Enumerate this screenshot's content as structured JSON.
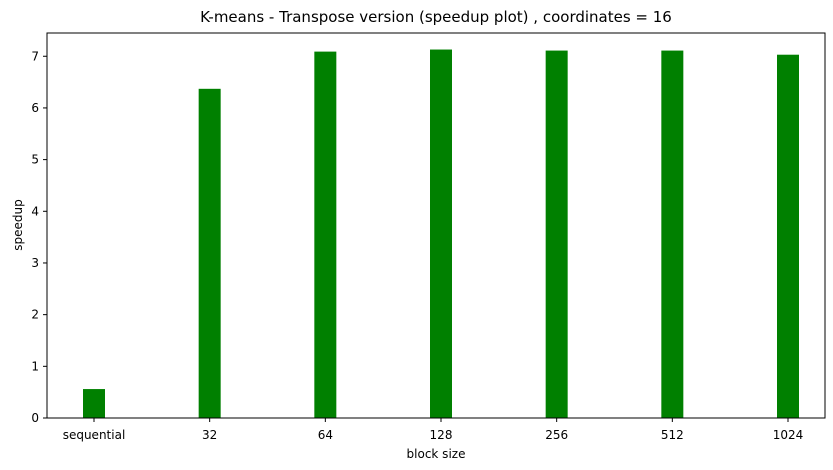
{
  "chart_data": {
    "type": "bar",
    "title": "K-means - Transpose version (speedup plot) , coordinates = 16",
    "xlabel": "block size",
    "ylabel": "speedup",
    "categories": [
      "sequential",
      "32",
      "64",
      "128",
      "256",
      "512",
      "1024"
    ],
    "values": [
      0.56,
      6.37,
      7.09,
      7.13,
      7.11,
      7.11,
      7.03
    ],
    "ylim": [
      0,
      7.45
    ],
    "yticks": [
      "0",
      "1",
      "2",
      "3",
      "4",
      "5",
      "6",
      "7"
    ],
    "bar_color": "#008000",
    "grid": false,
    "legend": "none"
  }
}
